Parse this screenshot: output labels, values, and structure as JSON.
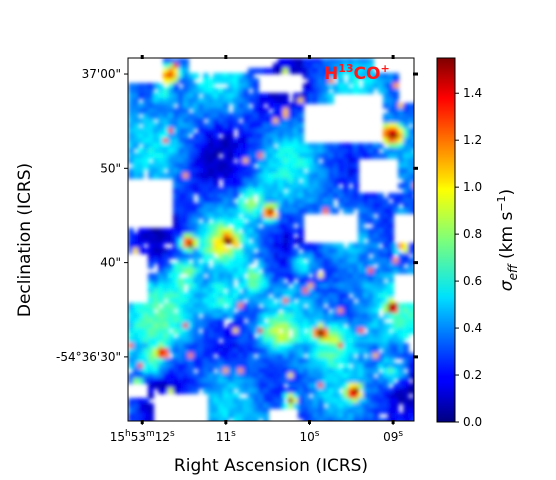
{
  "chart_data": {
    "type": "heatmap",
    "annotation": {
      "main": "H",
      "sup1": "13",
      "mid": "CO",
      "sup2": "+"
    },
    "xlabel": "Right Ascension (ICRS)",
    "ylabel": "Declination (ICRS)",
    "x_ticks": [
      {
        "label": {
          "h": "15",
          "hs": "h",
          "m": "53",
          "ms": "m",
          "s": "12",
          "ss": "s"
        },
        "value": 12
      },
      {
        "label": {
          "s": "11",
          "ss": "s"
        },
        "value": 11
      },
      {
        "label": {
          "s": "10",
          "ss": "s"
        },
        "value": 10
      },
      {
        "label": {
          "s": "09",
          "ss": "s"
        },
        "value": 9
      }
    ],
    "xlim": [
      12.17,
      8.75
    ],
    "y_ticks": [
      {
        "label": "-54°36'30\"",
        "value": 30
      },
      {
        "label": "40\"",
        "value": 40
      },
      {
        "label": "50\"",
        "value": 50
      },
      {
        "label": "37'00\"",
        "value": 60
      }
    ],
    "ylim": [
      61.7,
      23.2
    ],
    "colorbar": {
      "colormap": "jet",
      "range": [
        0.0,
        1.55
      ],
      "ticks": [
        "0.0",
        "0.2",
        "0.4",
        "0.6",
        "0.8",
        "1.0",
        "1.2",
        "1.4"
      ],
      "label": {
        "sym": "σ",
        "sub": "eff",
        "unit_open": " (km s",
        "exp": "−1",
        "unit_close": ")"
      }
    }
  }
}
